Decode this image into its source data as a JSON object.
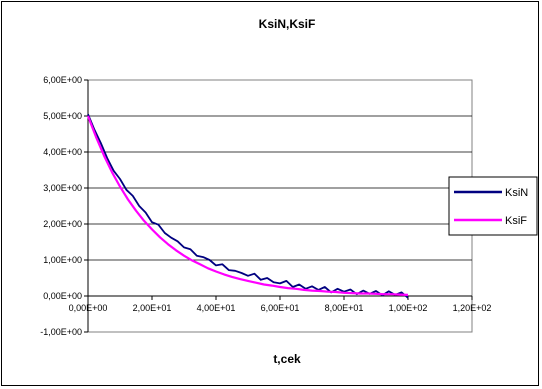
{
  "chart_data": {
    "type": "line",
    "title": "KsiN,KsiF",
    "xlabel": "t,cek",
    "ylabel": "",
    "xlim": [
      0,
      120
    ],
    "ylim": [
      -1,
      6
    ],
    "x_tick_labels": [
      "0,00E+00",
      "2,00E+01",
      "4,00E+01",
      "6,00E+01",
      "8,00E+01",
      "1,00E+02",
      "1,20E+02"
    ],
    "y_tick_labels": [
      "-1,00E+00",
      "0,00E+00",
      "1,00E+00",
      "2,00E+00",
      "3,00E+00",
      "4,00E+00",
      "5,00E+00",
      "6,00E+00"
    ],
    "grid": "horizontal",
    "legend": "right",
    "series": [
      {
        "name": "KsiN",
        "color": "#000080",
        "x": [
          0,
          2,
          4,
          6,
          8,
          10,
          12,
          14,
          16,
          18,
          20,
          22,
          24,
          26,
          28,
          30,
          32,
          34,
          36,
          38,
          40,
          42,
          44,
          46,
          48,
          50,
          52,
          54,
          56,
          58,
          60,
          62,
          64,
          66,
          68,
          70,
          72,
          74,
          76,
          78,
          80,
          82,
          84,
          86,
          88,
          90,
          92,
          94,
          96,
          98,
          100
        ],
        "values": [
          5.05,
          4.62,
          4.25,
          3.83,
          3.48,
          3.25,
          2.95,
          2.78,
          2.5,
          2.32,
          2.05,
          1.98,
          1.75,
          1.62,
          1.52,
          1.35,
          1.3,
          1.12,
          1.08,
          1.0,
          0.85,
          0.88,
          0.72,
          0.7,
          0.64,
          0.56,
          0.62,
          0.45,
          0.5,
          0.38,
          0.35,
          0.42,
          0.25,
          0.32,
          0.2,
          0.27,
          0.17,
          0.25,
          0.1,
          0.2,
          0.12,
          0.18,
          0.05,
          0.15,
          0.06,
          0.14,
          0.02,
          0.13,
          0.03,
          0.1,
          -0.05
        ]
      },
      {
        "name": "KsiF",
        "color": "#ff00ff",
        "x": [
          0,
          2.5,
          5,
          7.5,
          10,
          12.5,
          15,
          17.5,
          20,
          22.5,
          25,
          27.5,
          30,
          32.5,
          35,
          37.5,
          40,
          42.5,
          45,
          47.5,
          50,
          52.5,
          55,
          57.5,
          60,
          62.5,
          65,
          67.5,
          70,
          72.5,
          75,
          77.5,
          80,
          82.5,
          85,
          87.5,
          90,
          92.5,
          95,
          97.5,
          100
        ],
        "values": [
          5.0,
          4.42,
          3.9,
          3.44,
          3.04,
          2.68,
          2.37,
          2.09,
          1.85,
          1.63,
          1.44,
          1.27,
          1.12,
          0.99,
          0.88,
          0.77,
          0.68,
          0.6,
          0.53,
          0.47,
          0.42,
          0.37,
          0.32,
          0.29,
          0.25,
          0.22,
          0.2,
          0.17,
          0.15,
          0.14,
          0.12,
          0.11,
          0.09,
          0.08,
          0.07,
          0.07,
          0.06,
          0.05,
          0.05,
          0.04,
          0.03
        ]
      }
    ]
  }
}
